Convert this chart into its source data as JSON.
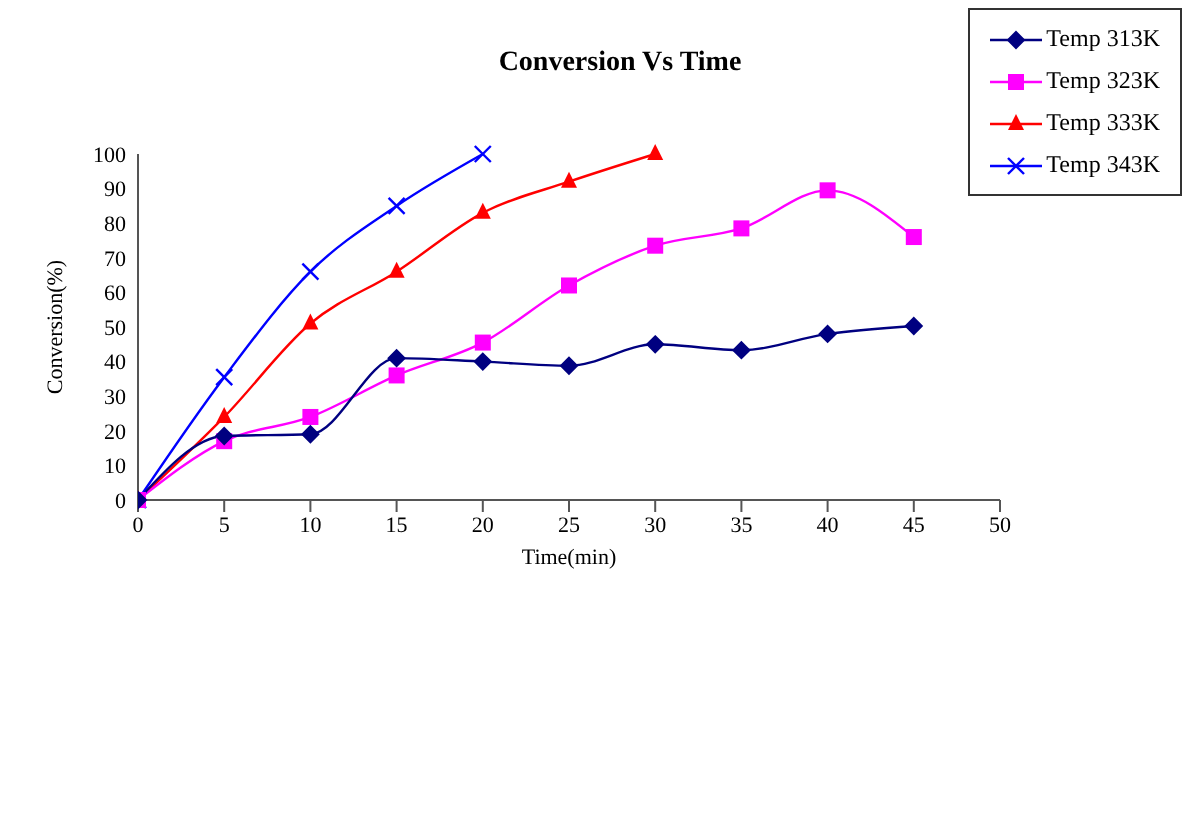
{
  "chart_data": {
    "type": "line",
    "title": "Conversion Vs Time",
    "xlabel": "Time(min)",
    "ylabel": "Conversion(%)",
    "x": [
      0,
      5,
      10,
      15,
      20,
      25,
      30,
      35,
      40,
      45
    ],
    "xlim": [
      0,
      50
    ],
    "xticks": [
      0,
      5,
      10,
      15,
      20,
      25,
      30,
      35,
      40,
      45,
      50
    ],
    "ylim": [
      0,
      100
    ],
    "yticks": [
      0,
      10,
      20,
      30,
      40,
      50,
      60,
      70,
      80,
      90,
      100
    ],
    "grid": false,
    "legend": "top right",
    "series": [
      {
        "name": "Temp 313K",
        "color": "#000080",
        "marker": "diamond",
        "values": [
          0,
          18.5,
          19,
          41,
          40,
          38.8,
          45,
          43.3,
          48,
          50.3
        ]
      },
      {
        "name": "Temp 323K",
        "color": "#ff00ff",
        "marker": "square",
        "values": [
          0,
          17,
          24,
          36,
          45.5,
          62,
          73.5,
          78.5,
          89.5,
          76
        ]
      },
      {
        "name": "Temp 333K",
        "color": "#ff0000",
        "marker": "triangle",
        "values": [
          0,
          24,
          51,
          66,
          83,
          92,
          100,
          null,
          null,
          null
        ]
      },
      {
        "name": "Temp 343K",
        "color": "#0000ff",
        "marker": "cross",
        "values": [
          0,
          35.5,
          66,
          85,
          100,
          null,
          null,
          null,
          null,
          null
        ]
      }
    ]
  }
}
